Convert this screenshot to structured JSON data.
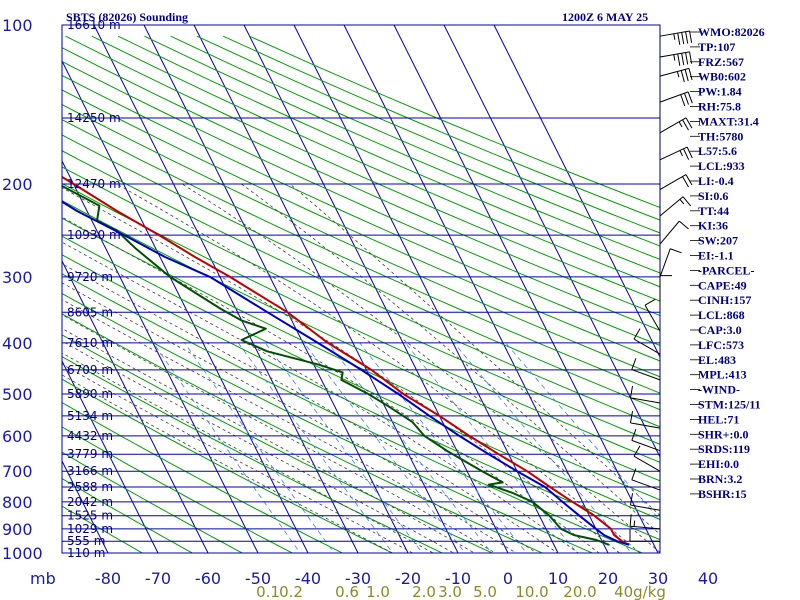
{
  "header": {
    "station": "SBTS (82026) Sounding",
    "time": "1200Z  6 MAY 25"
  },
  "colors": {
    "grid": "#0000b0",
    "temp": "#c00000",
    "dewpoint": "#005000",
    "parcel": "#0000c0",
    "dry_adiabat": "#00a000",
    "moist_adiabat": "#404040",
    "mixing_ratio": "#4080ff",
    "text": "#000080",
    "mixing_label": "#8a8a2a"
  },
  "chart_data": {
    "type": "line",
    "title": "SBTS (82026) Sounding",
    "subtitle": "1200Z  6 MAY 25",
    "x_unit_label": "mb",
    "y_axis_scale": "log-pressure",
    "xlim": [
      -80,
      40
    ],
    "ylim": [
      1000,
      100
    ],
    "pressure_ticks": [
      100,
      200,
      300,
      400,
      500,
      600,
      700,
      800,
      900,
      1000
    ],
    "temperature_ticks": [
      -80,
      -70,
      -60,
      -50,
      -40,
      -30,
      -20,
      -10,
      0,
      10,
      20,
      30,
      40
    ],
    "height_labels": [
      {
        "p": 100,
        "label": "16610 m"
      },
      {
        "p": 150,
        "label": "14250 m"
      },
      {
        "p": 200,
        "label": "12470 m"
      },
      {
        "p": 250,
        "label": "10930 m"
      },
      {
        "p": 300,
        "label": "9720 m"
      },
      {
        "p": 350,
        "label": "8605 m"
      },
      {
        "p": 400,
        "label": "7610 m"
      },
      {
        "p": 450,
        "label": "6709 m"
      },
      {
        "p": 500,
        "label": "5890 m"
      },
      {
        "p": 550,
        "label": "5134 m"
      },
      {
        "p": 600,
        "label": "4432 m"
      },
      {
        "p": 650,
        "label": "3779 m"
      },
      {
        "p": 700,
        "label": "3166 m"
      },
      {
        "p": 750,
        "label": "2588 m"
      },
      {
        "p": 800,
        "label": "2042 m"
      },
      {
        "p": 850,
        "label": "1525 m"
      },
      {
        "p": 900,
        "label": "1029 m"
      },
      {
        "p": 950,
        "label": "555 m"
      },
      {
        "p": 1000,
        "label": "110 m"
      }
    ],
    "mixing_ratio_labels": [
      "0.1",
      "0.2",
      "0.6",
      "1.0",
      "2.0",
      "3.0",
      "5.0",
      "10.0",
      "20.0",
      "40g/kg"
    ],
    "mixing_ratio_values": [
      0.1,
      0.2,
      0.6,
      1.0,
      2.0,
      3.0,
      5.0,
      10.0,
      20.0,
      40.0
    ],
    "series": [
      {
        "name": "Temperature",
        "points": [
          [
            100,
            -80
          ],
          [
            115,
            -74
          ],
          [
            140,
            -66
          ],
          [
            150,
            -62
          ],
          [
            175,
            -57
          ],
          [
            200,
            -50
          ],
          [
            225,
            -44
          ],
          [
            250,
            -38
          ],
          [
            275,
            -33
          ],
          [
            300,
            -28
          ],
          [
            350,
            -20
          ],
          [
            400,
            -15
          ],
          [
            450,
            -9
          ],
          [
            500,
            -5
          ],
          [
            550,
            0
          ],
          [
            600,
            4
          ],
          [
            650,
            8
          ],
          [
            700,
            12
          ],
          [
            750,
            15
          ],
          [
            800,
            18
          ],
          [
            850,
            21
          ],
          [
            900,
            23
          ],
          [
            925,
            23
          ],
          [
            950,
            24
          ],
          [
            965,
            25
          ]
        ]
      },
      {
        "name": "Dewpoint",
        "points": [
          [
            145,
            -60
          ],
          [
            158,
            -56
          ],
          [
            170,
            -55
          ],
          [
            178,
            -57
          ],
          [
            183,
            -51
          ],
          [
            197,
            -54
          ],
          [
            220,
            -47
          ],
          [
            235,
            -49
          ],
          [
            245,
            -46
          ],
          [
            265,
            -44
          ],
          [
            300,
            -40
          ],
          [
            345,
            -33
          ],
          [
            363,
            -30
          ],
          [
            376,
            -26
          ],
          [
            395,
            -32
          ],
          [
            415,
            -28
          ],
          [
            440,
            -19
          ],
          [
            455,
            -15
          ],
          [
            470,
            -16
          ],
          [
            500,
            -12
          ],
          [
            530,
            -9
          ],
          [
            565,
            -6
          ],
          [
            600,
            -5
          ],
          [
            640,
            -2
          ],
          [
            700,
            3
          ],
          [
            735,
            6
          ],
          [
            742,
            3
          ],
          [
            770,
            7
          ],
          [
            800,
            10
          ],
          [
            850,
            12
          ],
          [
            900,
            13
          ],
          [
            925,
            15
          ],
          [
            945,
            19
          ],
          [
            965,
            21
          ]
        ]
      },
      {
        "name": "Parcel",
        "points": [
          [
            145,
            -80
          ],
          [
            160,
            -73
          ],
          [
            175,
            -66
          ],
          [
            200,
            -58
          ],
          [
            225,
            -52
          ],
          [
            250,
            -45
          ],
          [
            275,
            -39
          ],
          [
            300,
            -32
          ],
          [
            350,
            -24
          ],
          [
            400,
            -17
          ],
          [
            450,
            -11
          ],
          [
            500,
            -6
          ],
          [
            550,
            -2
          ],
          [
            600,
            2
          ],
          [
            650,
            6
          ],
          [
            700,
            10
          ],
          [
            750,
            14
          ],
          [
            800,
            16
          ],
          [
            850,
            18
          ],
          [
            900,
            20
          ],
          [
            925,
            21
          ],
          [
            950,
            23
          ],
          [
            965,
            25
          ]
        ]
      }
    ]
  },
  "wind_profile": [
    {
      "p": 105,
      "spd": 45,
      "dir": 260
    },
    {
      "p": 115,
      "spd": 45,
      "dir": 260
    },
    {
      "p": 125,
      "spd": 35,
      "dir": 255
    },
    {
      "p": 140,
      "spd": 30,
      "dir": 250
    },
    {
      "p": 160,
      "spd": 25,
      "dir": 240
    },
    {
      "p": 180,
      "spd": 25,
      "dir": 245
    },
    {
      "p": 205,
      "spd": 20,
      "dir": 240
    },
    {
      "p": 230,
      "spd": 15,
      "dir": 230
    },
    {
      "p": 260,
      "spd": 10,
      "dir": 220
    },
    {
      "p": 300,
      "spd": 10,
      "dir": 200
    },
    {
      "p": 340,
      "spd": 10,
      "dir": 180
    },
    {
      "p": 380,
      "spd": 10,
      "dir": 150
    },
    {
      "p": 420,
      "spd": 10,
      "dir": 120
    },
    {
      "p": 470,
      "spd": 10,
      "dir": 110
    },
    {
      "p": 520,
      "spd": 10,
      "dir": 100
    },
    {
      "p": 580,
      "spd": 10,
      "dir": 100
    },
    {
      "p": 640,
      "spd": 10,
      "dir": 110
    },
    {
      "p": 700,
      "spd": 10,
      "dir": 120
    },
    {
      "p": 760,
      "spd": 10,
      "dir": 110
    },
    {
      "p": 830,
      "spd": 10,
      "dir": 100
    },
    {
      "p": 900,
      "spd": 15,
      "dir": 95
    },
    {
      "p": 950,
      "spd": 10,
      "dir": 90
    }
  ],
  "indices": [
    "WMO:82026",
    "TP:107",
    "FRZ:567",
    "WB0:602",
    "PW:1.84",
    "RH:75.8",
    "MAXT:31.4",
    "TH:5780",
    "L57:5.6",
    "LCL:933",
    "LI:-0.4",
    "SI:0.6",
    "TT:44",
    "KI:36",
    "SW:207",
    "EI:-1.1",
    "-PARCEL-",
    "CAPE:49",
    "CINH:157",
    "LCL:868",
    "CAP:3.0",
    "LFC:573",
    "EL:483",
    "MPL:413",
    "-WIND-",
    "STM:125/11",
    "HEL:71",
    "SHR+:0.0",
    "SRDS:119",
    "EHI:0.0",
    "BRN:3.2",
    "BSHR:15"
  ]
}
